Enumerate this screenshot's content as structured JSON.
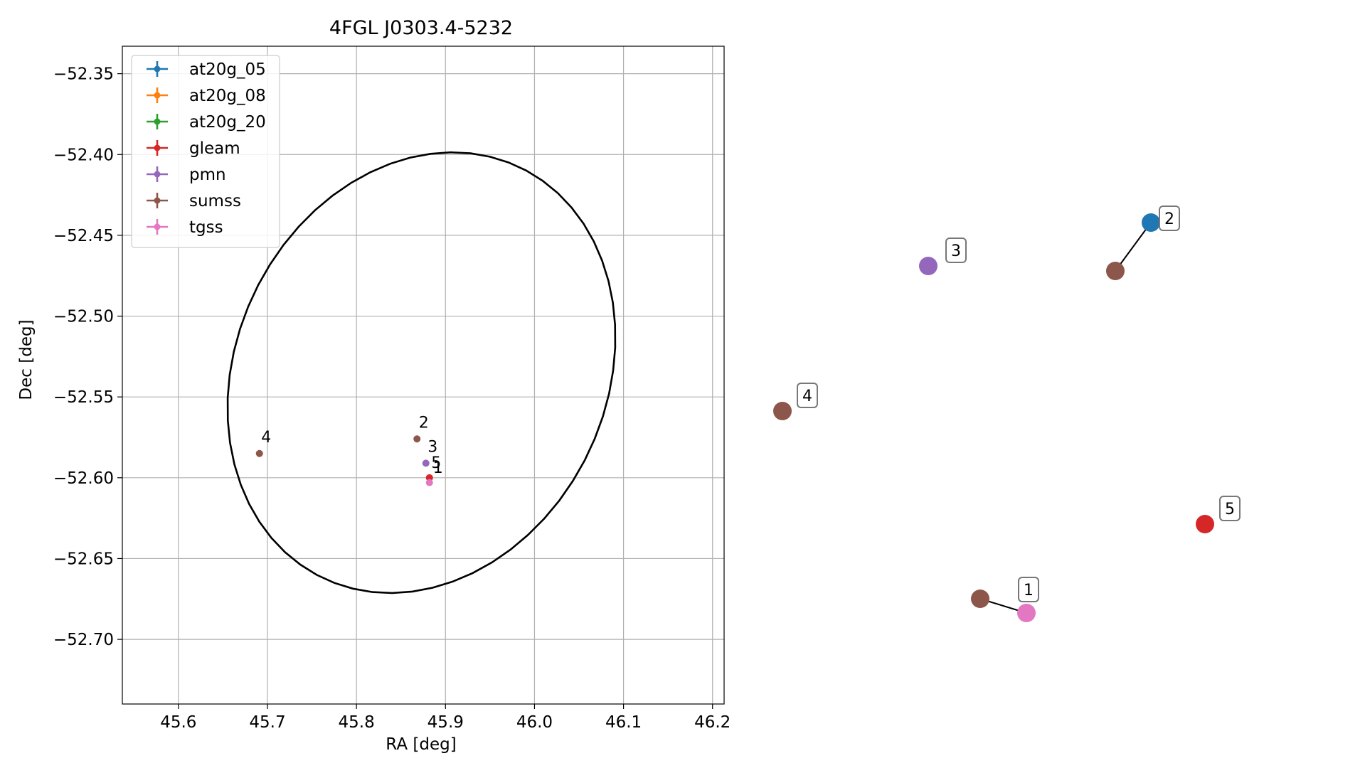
{
  "chart_data": {
    "type": "scatter",
    "title": "4FGL J0303.4-5232",
    "xlabel": "RA [deg]",
    "ylabel": "Dec [deg]",
    "xlim": [
      45.537,
      46.213
    ],
    "ylim": [
      -52.74,
      -52.333
    ],
    "xticks": [
      45.6,
      45.7,
      45.8,
      45.9,
      46.0,
      46.1,
      46.2
    ],
    "yticks": [
      -52.35,
      -52.4,
      -52.45,
      -52.5,
      -52.55,
      -52.6,
      -52.65,
      -52.7
    ],
    "xtick_labels": [
      "45.6",
      "45.7",
      "45.8",
      "45.9",
      "46.0",
      "46.1",
      "46.2"
    ],
    "ytick_labels": [
      "−52.35",
      "−52.40",
      "−52.45",
      "−52.50",
      "−52.55",
      "−52.60",
      "−52.65",
      "−52.70"
    ],
    "grid": true,
    "legend_position": "top-left",
    "legend": [
      {
        "name": "at20g_05",
        "color": "#1f77b4"
      },
      {
        "name": "at20g_08",
        "color": "#ff7f0e"
      },
      {
        "name": "at20g_20",
        "color": "#2ca02c"
      },
      {
        "name": "gleam",
        "color": "#d62728"
      },
      {
        "name": "pmn",
        "color": "#9467bd"
      },
      {
        "name": "sumss",
        "color": "#8c564b"
      },
      {
        "name": "tgss",
        "color": "#e377c2"
      }
    ],
    "ellipse": {
      "center": [
        45.873,
        -52.535
      ],
      "semi_major": 0.145,
      "semi_minor": 0.123,
      "angle_deg": 50
    },
    "points": [
      {
        "catalog": "sumss",
        "ra": 45.868,
        "dec": -52.576,
        "color": "#8c564b"
      },
      {
        "catalog": "pmn",
        "ra": 45.878,
        "dec": -52.591,
        "color": "#9467bd"
      },
      {
        "catalog": "gleam",
        "ra": 45.882,
        "dec": -52.6,
        "color": "#d62728"
      },
      {
        "catalog": "tgss",
        "ra": 45.882,
        "dec": -52.603,
        "color": "#e377c2"
      },
      {
        "catalog": "sumss",
        "ra": 45.691,
        "dec": -52.585,
        "color": "#8c564b"
      }
    ],
    "labels": [
      {
        "text": "2",
        "ra": 45.87,
        "dec": -52.569
      },
      {
        "text": "3",
        "ra": 45.88,
        "dec": -52.584
      },
      {
        "text": "5",
        "ra": 45.884,
        "dec": -52.594
      },
      {
        "text": "1",
        "ra": 45.886,
        "dec": -52.597
      },
      {
        "text": "4",
        "ra": 45.693,
        "dec": -52.578
      }
    ]
  },
  "zoom_panel": {
    "points": [
      {
        "catalog": "pmn",
        "color": "#9467bd",
        "label": "3"
      },
      {
        "catalog": "sumss",
        "color": "#8c564b",
        "label": ""
      },
      {
        "catalog": "at20g_05",
        "color": "#1f77b4",
        "label": "2"
      },
      {
        "catalog": "sumss",
        "color": "#8c564b",
        "label": "4"
      },
      {
        "catalog": "gleam",
        "color": "#d62728",
        "label": "5"
      },
      {
        "catalog": "sumss",
        "color": "#8c564b",
        "label": ""
      },
      {
        "catalog": "tgss",
        "color": "#e377c2",
        "label": "1"
      }
    ]
  }
}
